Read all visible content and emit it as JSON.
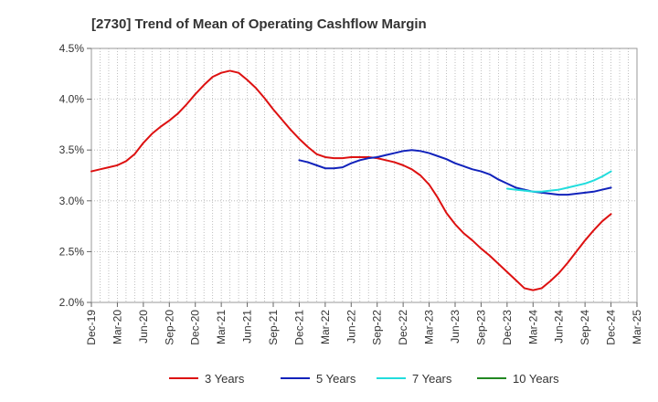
{
  "chart_data": {
    "type": "line",
    "title": "[2730]  Trend of Mean of Operating Cashflow Margin",
    "xlabel": "",
    "ylabel": "",
    "x_ticks": [
      "Dec-19",
      "Mar-20",
      "Jun-20",
      "Sep-20",
      "Dec-20",
      "Mar-21",
      "Jun-21",
      "Sep-21",
      "Dec-21",
      "Mar-22",
      "Jun-22",
      "Sep-22",
      "Dec-22",
      "Mar-23",
      "Jun-23",
      "Sep-23",
      "Dec-23",
      "Mar-24",
      "Jun-24",
      "Sep-24",
      "Dec-24",
      "Mar-25"
    ],
    "y_ticks": [
      "2.0%",
      "2.5%",
      "3.0%",
      "3.5%",
      "4.0%",
      "4.5%"
    ],
    "ylim": [
      2.0,
      4.5
    ],
    "grid": "dotted",
    "legend_position": "bottom",
    "series": [
      {
        "name": "3 Years",
        "color": "#dd1111",
        "values": [
          [
            "Dec-19",
            3.29
          ],
          [
            "Jan-20",
            3.31
          ],
          [
            "Feb-20",
            3.33
          ],
          [
            "Mar-20",
            3.35
          ],
          [
            "Apr-20",
            3.39
          ],
          [
            "May-20",
            3.46
          ],
          [
            "Jun-20",
            3.57
          ],
          [
            "Jul-20",
            3.66
          ],
          [
            "Aug-20",
            3.73
          ],
          [
            "Sep-20",
            3.79
          ],
          [
            "Oct-20",
            3.86
          ],
          [
            "Nov-20",
            3.95
          ],
          [
            "Dec-20",
            4.05
          ],
          [
            "Jan-21",
            4.14
          ],
          [
            "Feb-21",
            4.22
          ],
          [
            "Mar-21",
            4.26
          ],
          [
            "Apr-21",
            4.28
          ],
          [
            "May-21",
            4.26
          ],
          [
            "Jun-21",
            4.19
          ],
          [
            "Jul-21",
            4.11
          ],
          [
            "Aug-21",
            4.01
          ],
          [
            "Sep-21",
            3.9
          ],
          [
            "Oct-21",
            3.8
          ],
          [
            "Nov-21",
            3.7
          ],
          [
            "Dec-21",
            3.61
          ],
          [
            "Jan-22",
            3.53
          ],
          [
            "Feb-22",
            3.46
          ],
          [
            "Mar-22",
            3.43
          ],
          [
            "Apr-22",
            3.42
          ],
          [
            "May-22",
            3.42
          ],
          [
            "Jun-22",
            3.43
          ],
          [
            "Jul-22",
            3.43
          ],
          [
            "Aug-22",
            3.43
          ],
          [
            "Sep-22",
            3.42
          ],
          [
            "Oct-22",
            3.4
          ],
          [
            "Nov-22",
            3.38
          ],
          [
            "Dec-22",
            3.35
          ],
          [
            "Jan-23",
            3.31
          ],
          [
            "Feb-23",
            3.25
          ],
          [
            "Mar-23",
            3.16
          ],
          [
            "Apr-23",
            3.03
          ],
          [
            "May-23",
            2.88
          ],
          [
            "Jun-23",
            2.77
          ],
          [
            "Jul-23",
            2.68
          ],
          [
            "Aug-23",
            2.61
          ],
          [
            "Sep-23",
            2.53
          ],
          [
            "Oct-23",
            2.46
          ],
          [
            "Nov-23",
            2.38
          ],
          [
            "Dec-23",
            2.3
          ],
          [
            "Jan-24",
            2.22
          ],
          [
            "Feb-24",
            2.14
          ],
          [
            "Mar-24",
            2.12
          ],
          [
            "Apr-24",
            2.14
          ],
          [
            "May-24",
            2.21
          ],
          [
            "Jun-24",
            2.29
          ],
          [
            "Jul-24",
            2.39
          ],
          [
            "Aug-24",
            2.5
          ],
          [
            "Sep-24",
            2.61
          ],
          [
            "Oct-24",
            2.71
          ],
          [
            "Nov-24",
            2.8
          ],
          [
            "Dec-24",
            2.87
          ]
        ]
      },
      {
        "name": "5 Years",
        "color": "#1122bb",
        "values": [
          [
            "Dec-21",
            3.4
          ],
          [
            "Jan-22",
            3.38
          ],
          [
            "Feb-22",
            3.35
          ],
          [
            "Mar-22",
            3.32
          ],
          [
            "Apr-22",
            3.32
          ],
          [
            "May-22",
            3.33
          ],
          [
            "Jun-22",
            3.37
          ],
          [
            "Jul-22",
            3.4
          ],
          [
            "Aug-22",
            3.42
          ],
          [
            "Sep-22",
            3.43
          ],
          [
            "Oct-22",
            3.45
          ],
          [
            "Nov-22",
            3.47
          ],
          [
            "Dec-22",
            3.49
          ],
          [
            "Jan-23",
            3.5
          ],
          [
            "Feb-23",
            3.49
          ],
          [
            "Mar-23",
            3.47
          ],
          [
            "Apr-23",
            3.44
          ],
          [
            "May-23",
            3.41
          ],
          [
            "Jun-23",
            3.37
          ],
          [
            "Jul-23",
            3.34
          ],
          [
            "Aug-23",
            3.31
          ],
          [
            "Sep-23",
            3.29
          ],
          [
            "Oct-23",
            3.26
          ],
          [
            "Nov-23",
            3.21
          ],
          [
            "Dec-23",
            3.17
          ],
          [
            "Jan-24",
            3.13
          ],
          [
            "Feb-24",
            3.11
          ],
          [
            "Mar-24",
            3.09
          ],
          [
            "Apr-24",
            3.08
          ],
          [
            "May-24",
            3.07
          ],
          [
            "Jun-24",
            3.06
          ],
          [
            "Jul-24",
            3.06
          ],
          [
            "Aug-24",
            3.07
          ],
          [
            "Sep-24",
            3.08
          ],
          [
            "Oct-24",
            3.09
          ],
          [
            "Nov-24",
            3.11
          ],
          [
            "Dec-24",
            3.13
          ]
        ]
      },
      {
        "name": "7 Years",
        "color": "#22dddd",
        "values": [
          [
            "Dec-23",
            3.12
          ],
          [
            "Jan-24",
            3.11
          ],
          [
            "Feb-24",
            3.1
          ],
          [
            "Mar-24",
            3.09
          ],
          [
            "Apr-24",
            3.09
          ],
          [
            "May-24",
            3.1
          ],
          [
            "Jun-24",
            3.11
          ],
          [
            "Jul-24",
            3.13
          ],
          [
            "Aug-24",
            3.15
          ],
          [
            "Sep-24",
            3.17
          ],
          [
            "Oct-24",
            3.2
          ],
          [
            "Nov-24",
            3.24
          ],
          [
            "Dec-24",
            3.29
          ]
        ]
      },
      {
        "name": "10 Years",
        "color": "#228822",
        "values": []
      }
    ]
  }
}
